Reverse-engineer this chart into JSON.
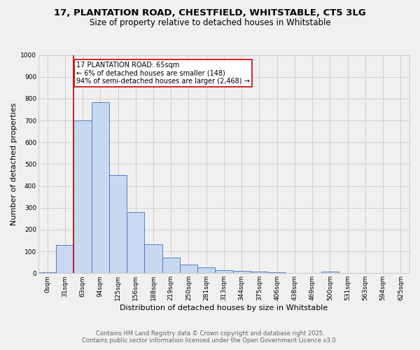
{
  "title1": "17, PLANTATION ROAD, CHESTFIELD, WHITSTABLE, CT5 3LG",
  "title2": "Size of property relative to detached houses in Whitstable",
  "xlabel": "Distribution of detached houses by size in Whitstable",
  "ylabel": "Number of detached properties",
  "categories": [
    "0sqm",
    "31sqm",
    "63sqm",
    "94sqm",
    "125sqm",
    "156sqm",
    "188sqm",
    "219sqm",
    "250sqm",
    "281sqm",
    "313sqm",
    "344sqm",
    "375sqm",
    "406sqm",
    "438sqm",
    "469sqm",
    "500sqm",
    "531sqm",
    "563sqm",
    "594sqm",
    "625sqm"
  ],
  "values": [
    5,
    130,
    700,
    785,
    450,
    280,
    133,
    70,
    38,
    25,
    15,
    12,
    8,
    4,
    0,
    0,
    6,
    0,
    0,
    0,
    0
  ],
  "bar_color": "#c6d9f0",
  "bar_edge_color": "#4472c4",
  "vline_color": "#cc0000",
  "annotation_text": "17 PLANTATION ROAD: 65sqm\n← 6% of detached houses are smaller (148)\n94% of semi-detached houses are larger (2,468) →",
  "annotation_box_color": "#ffffff",
  "annotation_box_edge": "#cc0000",
  "ylim": [
    0,
    1000
  ],
  "yticks": [
    0,
    100,
    200,
    300,
    400,
    500,
    600,
    700,
    800,
    900,
    1000
  ],
  "footer1": "Contains HM Land Registry data © Crown copyright and database right 2025.",
  "footer2": "Contains public sector information licensed under the Open Government Licence v3.0.",
  "bg_color": "#f0f0f0",
  "grid_color": "#cccccc",
  "title_fontsize": 9.5,
  "subtitle_fontsize": 8.5,
  "axis_fontsize": 8,
  "tick_fontsize": 6.5,
  "footer_fontsize": 6,
  "annot_fontsize": 7
}
